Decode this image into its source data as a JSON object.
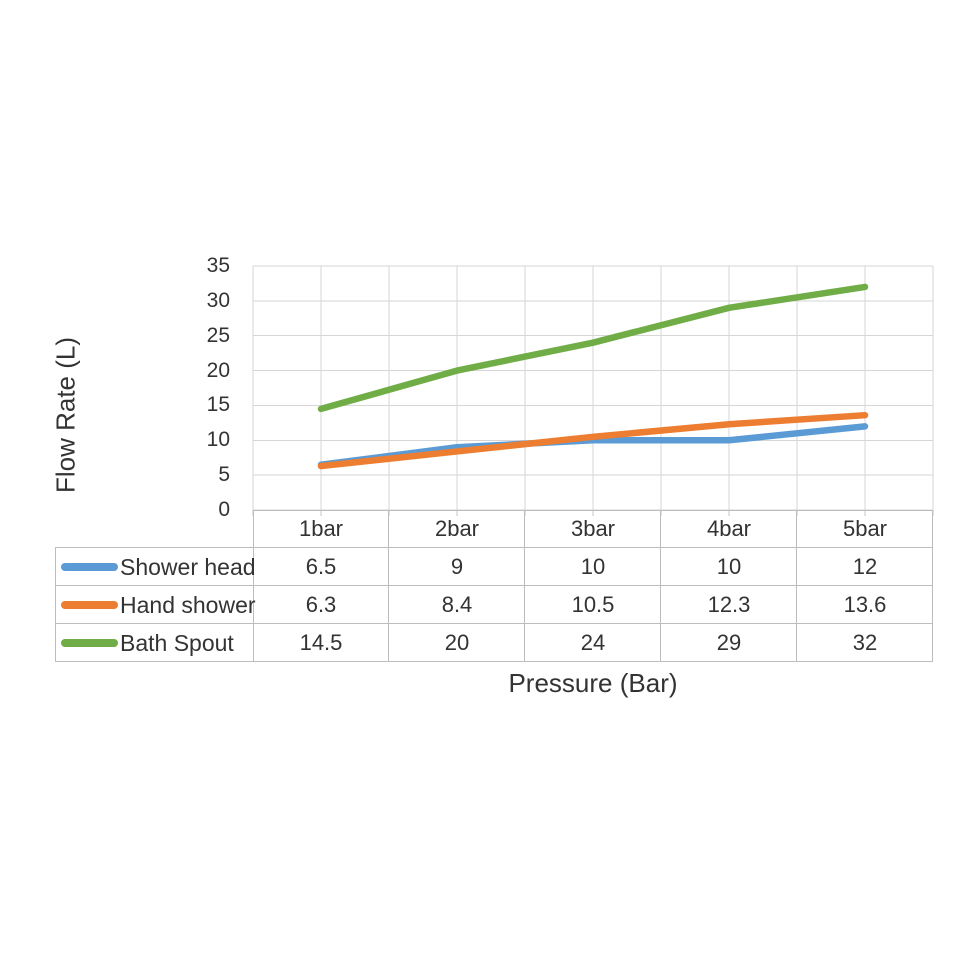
{
  "chart_data": {
    "type": "line",
    "categories": [
      "1bar",
      "2bar",
      "3bar",
      "4bar",
      "5bar"
    ],
    "series": [
      {
        "name": "Shower head",
        "color": "#5B9BD5",
        "values": [
          6.5,
          9,
          10,
          10,
          12
        ]
      },
      {
        "name": "Hand shower",
        "color": "#ED7D31",
        "values": [
          6.3,
          8.4,
          10.5,
          12.3,
          13.6
        ]
      },
      {
        "name": "Bath Spout",
        "color": "#70AD47",
        "values": [
          14.5,
          20,
          24,
          29,
          32
        ]
      }
    ],
    "title": "",
    "xlabel": "Pressure (Bar)",
    "ylabel": "Flow Rate (L)",
    "ylim": [
      0,
      35
    ],
    "y_tick_step": 5,
    "y_tick_labels": [
      "35",
      "30",
      "25",
      "20",
      "15",
      "10",
      "5",
      "0"
    ],
    "grid": true,
    "legend_position": "data-table-left"
  },
  "colors": {
    "gridline": "#d6d6d6",
    "axis_line": "#c4c4c4",
    "table_border": "#bdbdbd",
    "text": "#333333",
    "background": "#ffffff"
  }
}
